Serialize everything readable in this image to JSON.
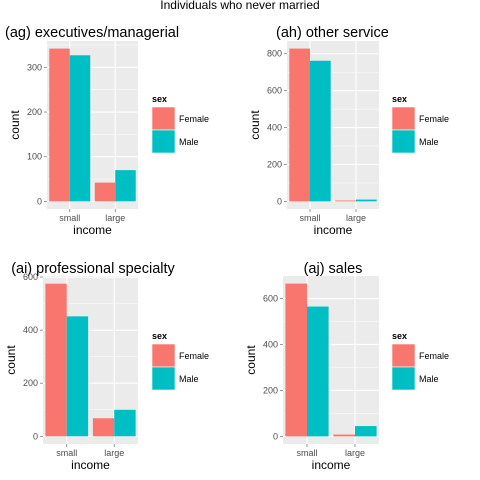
{
  "title": "Individuals who never married",
  "colors": {
    "female": "#F8766D",
    "male": "#00BFC4",
    "panel_bg": "#EBEBEB",
    "grid": "#FFFFFF"
  },
  "chart_data": [
    {
      "type": "bar",
      "title": "(ag) executives/managerial",
      "categories": [
        "small",
        "large"
      ],
      "series": [
        {
          "name": "Female",
          "values": [
            342,
            42
          ]
        },
        {
          "name": "Male",
          "values": [
            327,
            70
          ]
        }
      ],
      "xlabel": "income",
      "ylabel": "count",
      "yticks": [
        0,
        100,
        200,
        300
      ],
      "ylim": [
        -17,
        359
      ],
      "legend": {
        "title": "sex",
        "position": "right"
      }
    },
    {
      "type": "bar",
      "title": "(ah) other service",
      "categories": [
        "small",
        "large"
      ],
      "series": [
        {
          "name": "Female",
          "values": [
            828,
            5
          ]
        },
        {
          "name": "Male",
          "values": [
            762,
            10
          ]
        }
      ],
      "xlabel": "income",
      "ylabel": "count",
      "yticks": [
        0,
        200,
        400,
        600,
        800
      ],
      "ylim": [
        -41,
        869
      ],
      "legend": {
        "title": "sex",
        "position": "right"
      }
    },
    {
      "type": "bar",
      "title": "(ai) professional specialty",
      "categories": [
        "small",
        "large"
      ],
      "series": [
        {
          "name": "Female",
          "values": [
            575,
            68
          ]
        },
        {
          "name": "Male",
          "values": [
            452,
            100
          ]
        }
      ],
      "xlabel": "income",
      "ylabel": "count",
      "yticks": [
        0,
        200,
        400,
        600
      ],
      "ylim": [
        -29,
        604
      ],
      "legend": {
        "title": "sex",
        "position": "right"
      }
    },
    {
      "type": "bar",
      "title": "(aj) sales",
      "categories": [
        "small",
        "large"
      ],
      "series": [
        {
          "name": "Female",
          "values": [
            665,
            8
          ]
        },
        {
          "name": "Male",
          "values": [
            565,
            45
          ]
        }
      ],
      "xlabel": "income",
      "ylabel": "count",
      "yticks": [
        0,
        200,
        400,
        600
      ],
      "ylim": [
        -33,
        698
      ],
      "legend": {
        "title": "sex",
        "position": "right"
      }
    }
  ]
}
